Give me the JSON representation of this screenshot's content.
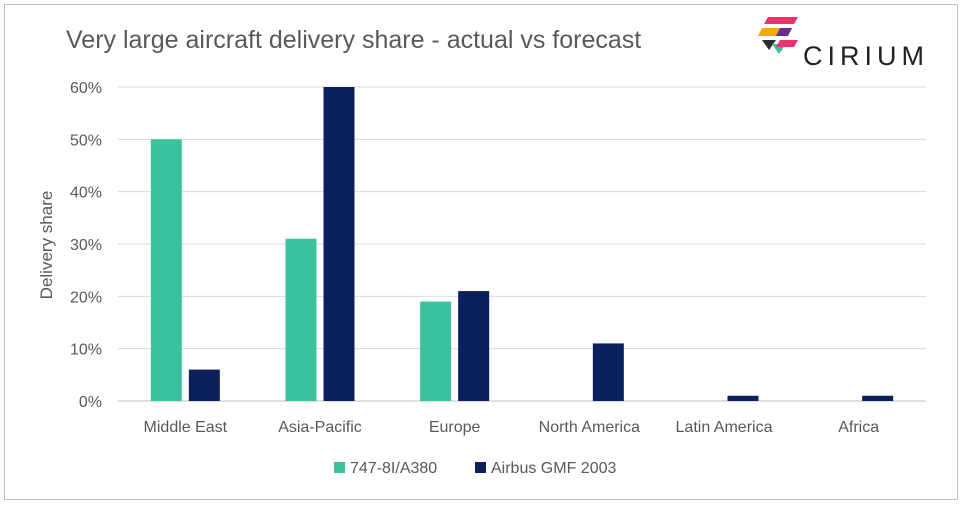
{
  "logo": {
    "text": "CIRIUM"
  },
  "chart_data": {
    "type": "bar",
    "title": "Very large aircraft delivery share - actual vs forecast",
    "xlabel": "",
    "ylabel": "Delivery share",
    "categories": [
      "Middle East",
      "Asia-Pacific",
      "Europe",
      "North America",
      "Latin America",
      "Africa"
    ],
    "series": [
      {
        "name": "747-8I/A380",
        "color": "#3cc19f",
        "values": [
          50,
          31,
          19,
          0,
          0,
          0
        ]
      },
      {
        "name": "Airbus GMF 2003",
        "color": "#0b1f5c",
        "values": [
          6,
          60,
          21,
          11,
          1,
          1
        ]
      }
    ],
    "ylim": [
      0,
      60
    ],
    "yticks": [
      "0%",
      "10%",
      "20%",
      "30%",
      "40%",
      "50%",
      "60%"
    ],
    "grid": true,
    "legend_position": "bottom"
  }
}
